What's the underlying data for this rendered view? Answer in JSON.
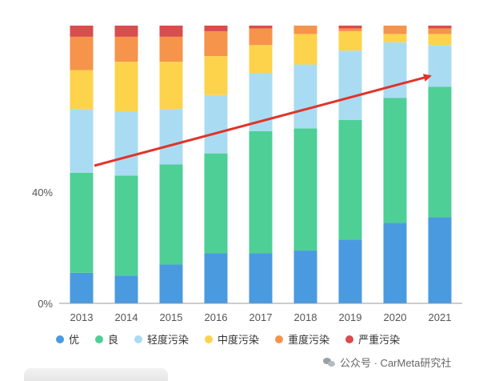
{
  "chart_data": {
    "type": "bar",
    "stacked": true,
    "categories": [
      "2013",
      "2014",
      "2015",
      "2016",
      "2017",
      "2018",
      "2019",
      "2020",
      "2021"
    ],
    "series": [
      {
        "name": "优",
        "color": "#4a9ae0",
        "values": [
          11,
          10,
          14,
          18,
          18,
          19,
          23,
          29,
          31
        ]
      },
      {
        "name": "良",
        "color": "#4dcf96",
        "values": [
          36,
          36,
          36,
          36,
          44,
          44,
          43,
          45,
          47
        ]
      },
      {
        "name": "轻度污染",
        "color": "#a9dcf2",
        "values": [
          23,
          23,
          20,
          21,
          21,
          23,
          25,
          20,
          15
        ]
      },
      {
        "name": "中度污染",
        "color": "#fdd34c",
        "values": [
          14,
          18,
          17,
          14,
          10,
          11,
          7,
          3,
          4
        ]
      },
      {
        "name": "重度污染",
        "color": "#f5944a",
        "values": [
          12,
          9,
          9,
          9,
          6,
          3,
          1,
          3,
          2
        ]
      },
      {
        "name": "严重污染",
        "color": "#d84d4d",
        "values": [
          4,
          4,
          4,
          2,
          1,
          0,
          1,
          0,
          1
        ]
      }
    ],
    "yticks": [
      "0%",
      "40%"
    ],
    "ylim": [
      0,
      100
    ],
    "grid": false,
    "legend": "bottom",
    "annotation": "red trend arrow"
  },
  "legend": {
    "items": [
      {
        "label": "优",
        "color": "#4a9ae0"
      },
      {
        "label": "良",
        "color": "#4dcf96"
      },
      {
        "label": "轻度污染",
        "color": "#a9dcf2"
      },
      {
        "label": "中度污染",
        "color": "#fdd34c"
      },
      {
        "label": "重度污染",
        "color": "#f5944a"
      },
      {
        "label": "严重污染",
        "color": "#d84d4d"
      }
    ]
  },
  "watermark": {
    "text": "公众号 · CarMeta研究社",
    "icon": "wechat-icon"
  }
}
